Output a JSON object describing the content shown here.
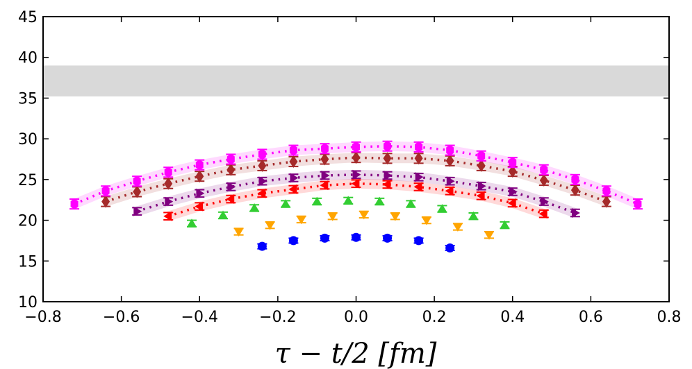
{
  "chart_data": {
    "type": "scatter",
    "title": "",
    "xlabel": "τ − t/2 [fm]",
    "ylabel": "",
    "xlim": [
      -0.8,
      0.8
    ],
    "ylim": [
      10,
      45
    ],
    "xticks": [
      -0.8,
      -0.6,
      -0.4,
      -0.2,
      0.0,
      0.2,
      0.4,
      0.6,
      0.8
    ],
    "xtick_labels": [
      "−0.8",
      "−0.6",
      "−0.4",
      "−0.2",
      "0.0",
      "0.2",
      "0.4",
      "0.6",
      "0.8"
    ],
    "yticks": [
      10,
      15,
      20,
      25,
      30,
      35,
      40,
      45
    ],
    "ytick_labels": [
      "10",
      "15",
      "20",
      "25",
      "30",
      "35",
      "40",
      "45"
    ],
    "grid": false,
    "reference_band": {
      "y_low": 35.2,
      "y_high": 39.0,
      "color": "#d9d9d9"
    },
    "series": [
      {
        "color": "#0000ff",
        "marker": "circle",
        "fit": false,
        "x": [
          -0.24,
          -0.16,
          -0.08,
          0,
          0.08,
          0.16,
          0.24
        ],
        "y": [
          16.8,
          17.5,
          17.8,
          17.9,
          17.8,
          17.5,
          16.6
        ],
        "err": 0.3
      },
      {
        "color": "#ffa500",
        "marker": "triangle-down",
        "fit": false,
        "x": [
          -0.3,
          -0.22,
          -0.14,
          -0.06,
          0.02,
          0.1,
          0.18,
          0.26,
          0.34
        ],
        "y": [
          18.6,
          19.4,
          20.1,
          20.5,
          20.7,
          20.5,
          20.0,
          19.2,
          18.2
        ],
        "err": 0.4
      },
      {
        "color": "#32cd32",
        "marker": "triangle-up",
        "fit": false,
        "x": [
          -0.42,
          -0.34,
          -0.26,
          -0.18,
          -0.1,
          -0.02,
          0.06,
          0.14,
          0.22,
          0.3,
          0.38
        ],
        "y": [
          19.6,
          20.6,
          21.5,
          22.0,
          22.3,
          22.4,
          22.3,
          22.0,
          21.4,
          20.5,
          19.4
        ],
        "err": 0.4
      },
      {
        "color": "#ff0000",
        "marker": "triangle-left",
        "fit": true,
        "x": [
          -0.48,
          -0.4,
          -0.32,
          -0.24,
          -0.16,
          -0.08,
          0,
          0.08,
          0.16,
          0.24,
          0.32,
          0.4,
          0.48
        ],
        "y": [
          20.5,
          21.7,
          22.6,
          23.3,
          23.8,
          24.3,
          24.5,
          24.4,
          24.1,
          23.6,
          23.0,
          22.1,
          20.8
        ],
        "err": 0.45
      },
      {
        "color": "#800080",
        "marker": "triangle-right",
        "fit": true,
        "x": [
          -0.56,
          -0.48,
          -0.4,
          -0.32,
          -0.24,
          -0.16,
          -0.08,
          0,
          0.08,
          0.16,
          0.24,
          0.32,
          0.4,
          0.48,
          0.56
        ],
        "y": [
          21.1,
          22.3,
          23.3,
          24.1,
          24.8,
          25.2,
          25.5,
          25.6,
          25.5,
          25.3,
          24.8,
          24.2,
          23.5,
          22.3,
          20.9
        ],
        "err": 0.45
      },
      {
        "color": "#a52a2a",
        "marker": "diamond",
        "fit": true,
        "x": [
          -0.64,
          -0.56,
          -0.48,
          -0.4,
          -0.32,
          -0.24,
          -0.16,
          -0.08,
          0,
          0.08,
          0.16,
          0.24,
          0.32,
          0.4,
          0.48,
          0.56,
          0.64
        ],
        "y": [
          22.3,
          23.5,
          24.5,
          25.4,
          26.2,
          26.7,
          27.2,
          27.5,
          27.7,
          27.6,
          27.6,
          27.3,
          26.7,
          26.0,
          24.9,
          23.7,
          22.3
        ],
        "err": 0.6
      },
      {
        "color": "#ff00ff",
        "marker": "hexagon",
        "fit": true,
        "x": [
          -0.72,
          -0.64,
          -0.56,
          -0.48,
          -0.4,
          -0.32,
          -0.24,
          -0.16,
          -0.08,
          0,
          0.08,
          0.16,
          0.24,
          0.32,
          0.4,
          0.48,
          0.56,
          0.64,
          0.72
        ],
        "y": [
          22.0,
          23.6,
          24.8,
          25.9,
          26.8,
          27.5,
          28.1,
          28.6,
          28.8,
          29.0,
          29.1,
          29.0,
          28.6,
          27.9,
          27.1,
          26.2,
          25.0,
          23.6,
          22.0
        ],
        "err": 0.6
      }
    ]
  }
}
